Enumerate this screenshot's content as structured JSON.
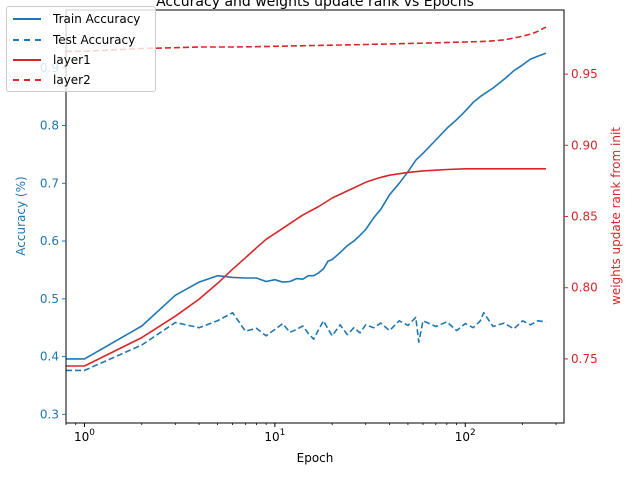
{
  "chart_data": {
    "type": "line",
    "title": "Accuracy and weights update rank vs Epochs",
    "xlabel": "Epoch",
    "ylabel_left": "Accuracy (%)",
    "ylabel_right": "weights update rank from init",
    "x_scale": "log",
    "xlim": [
      0.8,
      330
    ],
    "ylim_left": [
      0.285,
      1.0
    ],
    "ylim_right": [
      0.705,
      0.995
    ],
    "x_ticks": [
      1,
      10,
      100
    ],
    "x_tick_labels": [
      "10^0",
      "10^1",
      "10^2"
    ],
    "y_ticks_left": [
      0.3,
      0.4,
      0.5,
      0.6,
      0.7,
      0.8,
      0.9
    ],
    "y_tick_labels_left": [
      "0.3",
      "0.4",
      "0.5",
      "0.6",
      "0.7",
      "0.8",
      "0.9"
    ],
    "y_ticks_right": [
      0.75,
      0.8,
      0.85,
      0.9,
      0.95
    ],
    "y_tick_labels_right": [
      "0.75",
      "0.80",
      "0.85",
      "0.90",
      "0.95"
    ],
    "grid": false,
    "legend_position": "top-left",
    "colors": {
      "accuracy": "#1f77b4",
      "rank": "#d62728"
    },
    "series": [
      {
        "name": "Train Accuracy",
        "axis": "left",
        "color": "#1f77b4",
        "dash": "solid",
        "x": [
          0.8,
          1,
          2,
          3,
          4,
          5,
          6,
          7,
          8,
          9,
          10,
          11,
          12,
          13,
          14,
          15,
          16,
          17,
          18,
          19,
          20,
          22,
          24,
          26,
          28,
          30,
          33,
          36,
          40,
          45,
          50,
          55,
          60,
          70,
          80,
          90,
          100,
          110,
          120,
          140,
          160,
          180,
          200,
          220,
          240,
          265
        ],
        "y": [
          0.396,
          0.396,
          0.453,
          0.506,
          0.529,
          0.54,
          0.537,
          0.536,
          0.536,
          0.53,
          0.533,
          0.529,
          0.53,
          0.535,
          0.534,
          0.54,
          0.54,
          0.545,
          0.552,
          0.565,
          0.568,
          0.58,
          0.592,
          0.6,
          0.61,
          0.62,
          0.64,
          0.655,
          0.68,
          0.7,
          0.72,
          0.74,
          0.752,
          0.775,
          0.795,
          0.81,
          0.825,
          0.84,
          0.85,
          0.865,
          0.88,
          0.895,
          0.905,
          0.915,
          0.92,
          0.925
        ]
      },
      {
        "name": "Test Accuracy",
        "axis": "left",
        "color": "#1f77b4",
        "dash": "dashed",
        "x": [
          0.8,
          1,
          2,
          3,
          4,
          5,
          6,
          7,
          8,
          9,
          10,
          11,
          12,
          13,
          14,
          15,
          16,
          17,
          18,
          19,
          20,
          22,
          24,
          26,
          28,
          30,
          33,
          36,
          40,
          45,
          50,
          55,
          57,
          60,
          70,
          80,
          90,
          100,
          110,
          120,
          125,
          140,
          160,
          180,
          200,
          220,
          240,
          265
        ],
        "y": [
          0.376,
          0.376,
          0.42,
          0.459,
          0.45,
          0.462,
          0.476,
          0.444,
          0.449,
          0.436,
          0.447,
          0.457,
          0.442,
          0.447,
          0.453,
          0.44,
          0.43,
          0.447,
          0.462,
          0.448,
          0.436,
          0.455,
          0.438,
          0.45,
          0.441,
          0.455,
          0.45,
          0.458,
          0.445,
          0.462,
          0.454,
          0.468,
          0.425,
          0.462,
          0.452,
          0.46,
          0.445,
          0.457,
          0.45,
          0.462,
          0.476,
          0.452,
          0.458,
          0.448,
          0.462,
          0.455,
          0.462,
          0.46
        ]
      },
      {
        "name": "layer1",
        "axis": "right",
        "color": "#d62728",
        "dash": "solid",
        "x": [
          0.8,
          1,
          2,
          3,
          4,
          5,
          6,
          7,
          8,
          9,
          10,
          12,
          14,
          17,
          20,
          25,
          30,
          35,
          40,
          50,
          60,
          70,
          80,
          100,
          130,
          160,
          200,
          265
        ],
        "y": [
          0.745,
          0.745,
          0.765,
          0.78,
          0.792,
          0.803,
          0.813,
          0.821,
          0.828,
          0.834,
          0.838,
          0.845,
          0.851,
          0.857,
          0.863,
          0.869,
          0.874,
          0.877,
          0.879,
          0.881,
          0.882,
          0.8825,
          0.883,
          0.8835,
          0.8835,
          0.8835,
          0.8835,
          0.8835
        ]
      },
      {
        "name": "layer2",
        "axis": "right",
        "color": "#d62728",
        "dash": "dashed",
        "x": [
          0.8,
          1,
          2,
          3,
          4,
          5,
          6,
          8,
          10,
          15,
          20,
          30,
          50,
          70,
          100,
          130,
          160,
          190,
          220,
          240,
          265
        ],
        "y": [
          0.966,
          0.966,
          0.968,
          0.9685,
          0.969,
          0.969,
          0.969,
          0.9692,
          0.9695,
          0.97,
          0.9703,
          0.9708,
          0.9715,
          0.972,
          0.9725,
          0.973,
          0.974,
          0.976,
          0.978,
          0.98,
          0.983
        ]
      }
    ]
  }
}
